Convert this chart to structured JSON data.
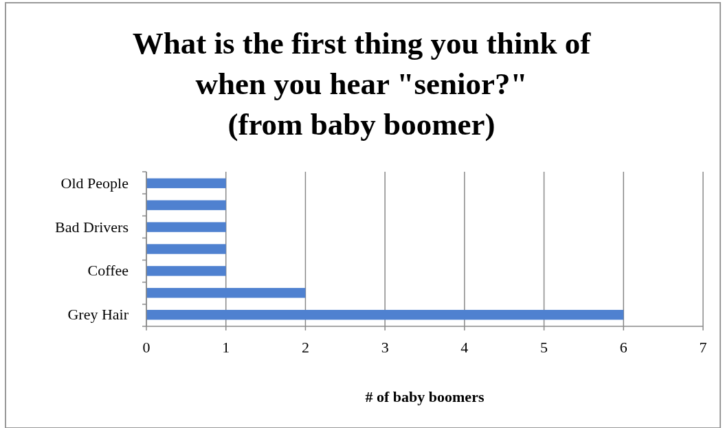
{
  "chart_data": {
    "type": "bar",
    "orientation": "horizontal",
    "title": "What is the first thing you think of\nwhen you hear \"senior?\"\n(from baby boomer)",
    "categories": [
      "Old People",
      null,
      "Bad Drivers",
      null,
      "Coffee",
      null,
      "Grey Hair"
    ],
    "values": [
      1,
      1,
      1,
      1,
      1,
      2,
      6
    ],
    "color": "#4f81d0",
    "xlim": [
      0,
      7
    ],
    "xticks": [
      0,
      1,
      2,
      3,
      4,
      5,
      6,
      7
    ],
    "xlabel": "# of baby boomers",
    "grid": "x"
  }
}
